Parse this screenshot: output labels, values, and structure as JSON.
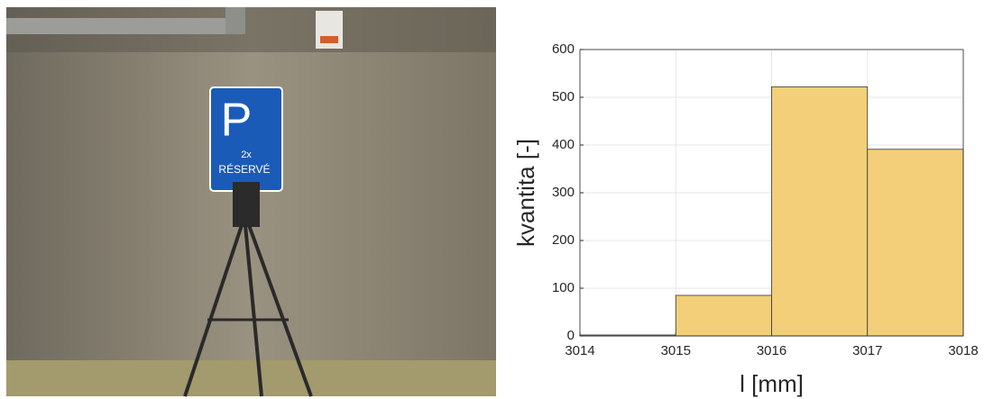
{
  "photo": {
    "sign_letter": "P",
    "sign_count": "2x",
    "sign_text": "RÉSERVÉ"
  },
  "chart_data": {
    "type": "histogram",
    "xlabel": "l [mm]",
    "ylabel": "kvantita [-]",
    "bins": [
      3014,
      3015,
      3016,
      3017,
      3018
    ],
    "values": [
      2,
      85,
      522,
      391
    ],
    "color": "#f2cf78",
    "xlim": [
      3014,
      3018
    ],
    "ylim": [
      0,
      600
    ],
    "xticks": [
      3014,
      3015,
      3016,
      3017,
      3018
    ],
    "yticks": [
      0,
      100,
      200,
      300,
      400,
      500,
      600
    ],
    "grid": true
  }
}
